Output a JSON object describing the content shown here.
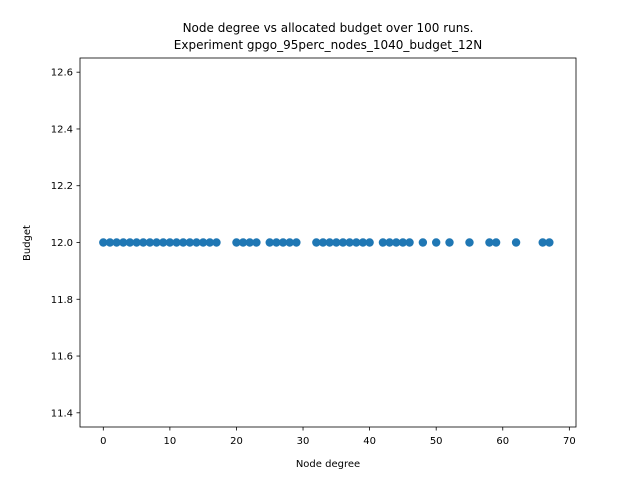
{
  "chart_data": {
    "type": "scatter",
    "title_line1": "Node degree vs allocated budget over 100 runs.",
    "title_line2": "Experiment gpgo_95perc_nodes_1040_budget_12N",
    "xlabel": "Node degree",
    "ylabel": "Budget",
    "xlim": [
      -3.5,
      71
    ],
    "ylim": [
      11.35,
      12.65
    ],
    "xticks": [
      0,
      10,
      20,
      30,
      40,
      50,
      60,
      70
    ],
    "yticks": [
      11.4,
      11.6,
      11.8,
      12.0,
      12.2,
      12.4,
      12.6
    ],
    "xtick_labels": [
      "0",
      "10",
      "20",
      "30",
      "40",
      "50",
      "60",
      "70"
    ],
    "ytick_labels": [
      "11.4",
      "11.6",
      "11.8",
      "12.0",
      "12.2",
      "12.4",
      "12.6"
    ],
    "grid": false,
    "color": "#1f77b4",
    "x": [
      0,
      1,
      2,
      3,
      4,
      5,
      6,
      7,
      8,
      9,
      10,
      11,
      12,
      13,
      14,
      15,
      16,
      17,
      20,
      21,
      22,
      23,
      25,
      26,
      27,
      28,
      29,
      32,
      33,
      34,
      35,
      36,
      37,
      38,
      39,
      40,
      42,
      43,
      44,
      45,
      46,
      48,
      50,
      52,
      55,
      58,
      59,
      62,
      66,
      67
    ],
    "y": [
      12,
      12,
      12,
      12,
      12,
      12,
      12,
      12,
      12,
      12,
      12,
      12,
      12,
      12,
      12,
      12,
      12,
      12,
      12,
      12,
      12,
      12,
      12,
      12,
      12,
      12,
      12,
      12,
      12,
      12,
      12,
      12,
      12,
      12,
      12,
      12,
      12,
      12,
      12,
      12,
      12,
      12,
      12,
      12,
      12,
      12,
      12,
      12,
      12,
      12
    ]
  }
}
